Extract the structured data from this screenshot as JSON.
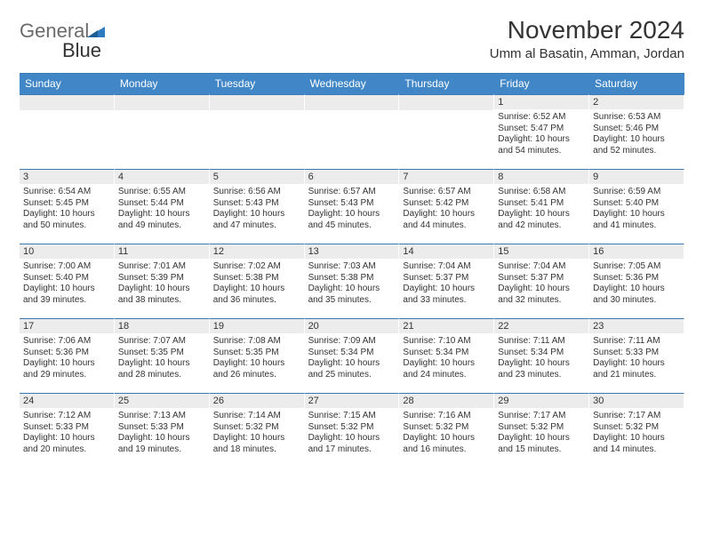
{
  "logo": {
    "part1": "General",
    "part2": "Blue"
  },
  "title": "November 2024",
  "location": "Umm al Basatin, Amman, Jordan",
  "colors": {
    "header_bg": "#4187c8",
    "header_text": "#ffffff",
    "cell_border": "#3b78b5",
    "daynum_bg": "#ececec",
    "text": "#333333",
    "logo_gray": "#6b6b6b",
    "logo_blue": "#2f7ac0"
  },
  "day_names": [
    "Sunday",
    "Monday",
    "Tuesday",
    "Wednesday",
    "Thursday",
    "Friday",
    "Saturday"
  ],
  "leading_blanks": 5,
  "days": [
    {
      "n": 1,
      "sr": "6:52 AM",
      "ss": "5:47 PM",
      "dl": "10 hours and 54 minutes."
    },
    {
      "n": 2,
      "sr": "6:53 AM",
      "ss": "5:46 PM",
      "dl": "10 hours and 52 minutes."
    },
    {
      "n": 3,
      "sr": "6:54 AM",
      "ss": "5:45 PM",
      "dl": "10 hours and 50 minutes."
    },
    {
      "n": 4,
      "sr": "6:55 AM",
      "ss": "5:44 PM",
      "dl": "10 hours and 49 minutes."
    },
    {
      "n": 5,
      "sr": "6:56 AM",
      "ss": "5:43 PM",
      "dl": "10 hours and 47 minutes."
    },
    {
      "n": 6,
      "sr": "6:57 AM",
      "ss": "5:43 PM",
      "dl": "10 hours and 45 minutes."
    },
    {
      "n": 7,
      "sr": "6:57 AM",
      "ss": "5:42 PM",
      "dl": "10 hours and 44 minutes."
    },
    {
      "n": 8,
      "sr": "6:58 AM",
      "ss": "5:41 PM",
      "dl": "10 hours and 42 minutes."
    },
    {
      "n": 9,
      "sr": "6:59 AM",
      "ss": "5:40 PM",
      "dl": "10 hours and 41 minutes."
    },
    {
      "n": 10,
      "sr": "7:00 AM",
      "ss": "5:40 PM",
      "dl": "10 hours and 39 minutes."
    },
    {
      "n": 11,
      "sr": "7:01 AM",
      "ss": "5:39 PM",
      "dl": "10 hours and 38 minutes."
    },
    {
      "n": 12,
      "sr": "7:02 AM",
      "ss": "5:38 PM",
      "dl": "10 hours and 36 minutes."
    },
    {
      "n": 13,
      "sr": "7:03 AM",
      "ss": "5:38 PM",
      "dl": "10 hours and 35 minutes."
    },
    {
      "n": 14,
      "sr": "7:04 AM",
      "ss": "5:37 PM",
      "dl": "10 hours and 33 minutes."
    },
    {
      "n": 15,
      "sr": "7:04 AM",
      "ss": "5:37 PM",
      "dl": "10 hours and 32 minutes."
    },
    {
      "n": 16,
      "sr": "7:05 AM",
      "ss": "5:36 PM",
      "dl": "10 hours and 30 minutes."
    },
    {
      "n": 17,
      "sr": "7:06 AM",
      "ss": "5:36 PM",
      "dl": "10 hours and 29 minutes."
    },
    {
      "n": 18,
      "sr": "7:07 AM",
      "ss": "5:35 PM",
      "dl": "10 hours and 28 minutes."
    },
    {
      "n": 19,
      "sr": "7:08 AM",
      "ss": "5:35 PM",
      "dl": "10 hours and 26 minutes."
    },
    {
      "n": 20,
      "sr": "7:09 AM",
      "ss": "5:34 PM",
      "dl": "10 hours and 25 minutes."
    },
    {
      "n": 21,
      "sr": "7:10 AM",
      "ss": "5:34 PM",
      "dl": "10 hours and 24 minutes."
    },
    {
      "n": 22,
      "sr": "7:11 AM",
      "ss": "5:34 PM",
      "dl": "10 hours and 23 minutes."
    },
    {
      "n": 23,
      "sr": "7:11 AM",
      "ss": "5:33 PM",
      "dl": "10 hours and 21 minutes."
    },
    {
      "n": 24,
      "sr": "7:12 AM",
      "ss": "5:33 PM",
      "dl": "10 hours and 20 minutes."
    },
    {
      "n": 25,
      "sr": "7:13 AM",
      "ss": "5:33 PM",
      "dl": "10 hours and 19 minutes."
    },
    {
      "n": 26,
      "sr": "7:14 AM",
      "ss": "5:32 PM",
      "dl": "10 hours and 18 minutes."
    },
    {
      "n": 27,
      "sr": "7:15 AM",
      "ss": "5:32 PM",
      "dl": "10 hours and 17 minutes."
    },
    {
      "n": 28,
      "sr": "7:16 AM",
      "ss": "5:32 PM",
      "dl": "10 hours and 16 minutes."
    },
    {
      "n": 29,
      "sr": "7:17 AM",
      "ss": "5:32 PM",
      "dl": "10 hours and 15 minutes."
    },
    {
      "n": 30,
      "sr": "7:17 AM",
      "ss": "5:32 PM",
      "dl": "10 hours and 14 minutes."
    }
  ],
  "labels": {
    "sunrise": "Sunrise:",
    "sunset": "Sunset:",
    "daylight": "Daylight:"
  }
}
